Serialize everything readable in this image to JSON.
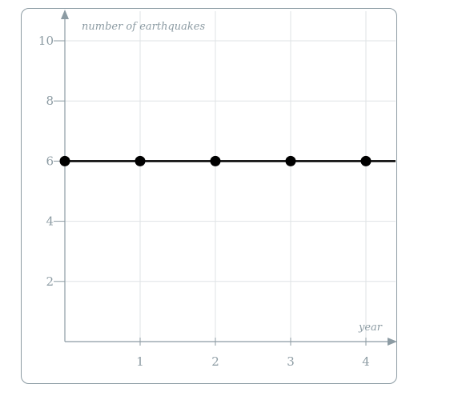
{
  "chart_data": {
    "type": "line",
    "xlabel": "year",
    "ylabel": "number of earthquakes",
    "xlim": [
      0,
      4.4
    ],
    "ylim": [
      0,
      10.5
    ],
    "x_ticks": [
      "1",
      "2",
      "3",
      "4"
    ],
    "y_ticks": [
      "2",
      "4",
      "6",
      "8",
      "10"
    ],
    "grid": true,
    "series": [
      {
        "x": [
          0,
          1,
          2,
          3,
          4
        ],
        "y": [
          6,
          6,
          6,
          6,
          6
        ],
        "line_extends_to_edge": true
      }
    ],
    "colors": {
      "series": "#000000",
      "axis": "#8c9ba3",
      "grid": "#dfe3e5"
    }
  }
}
